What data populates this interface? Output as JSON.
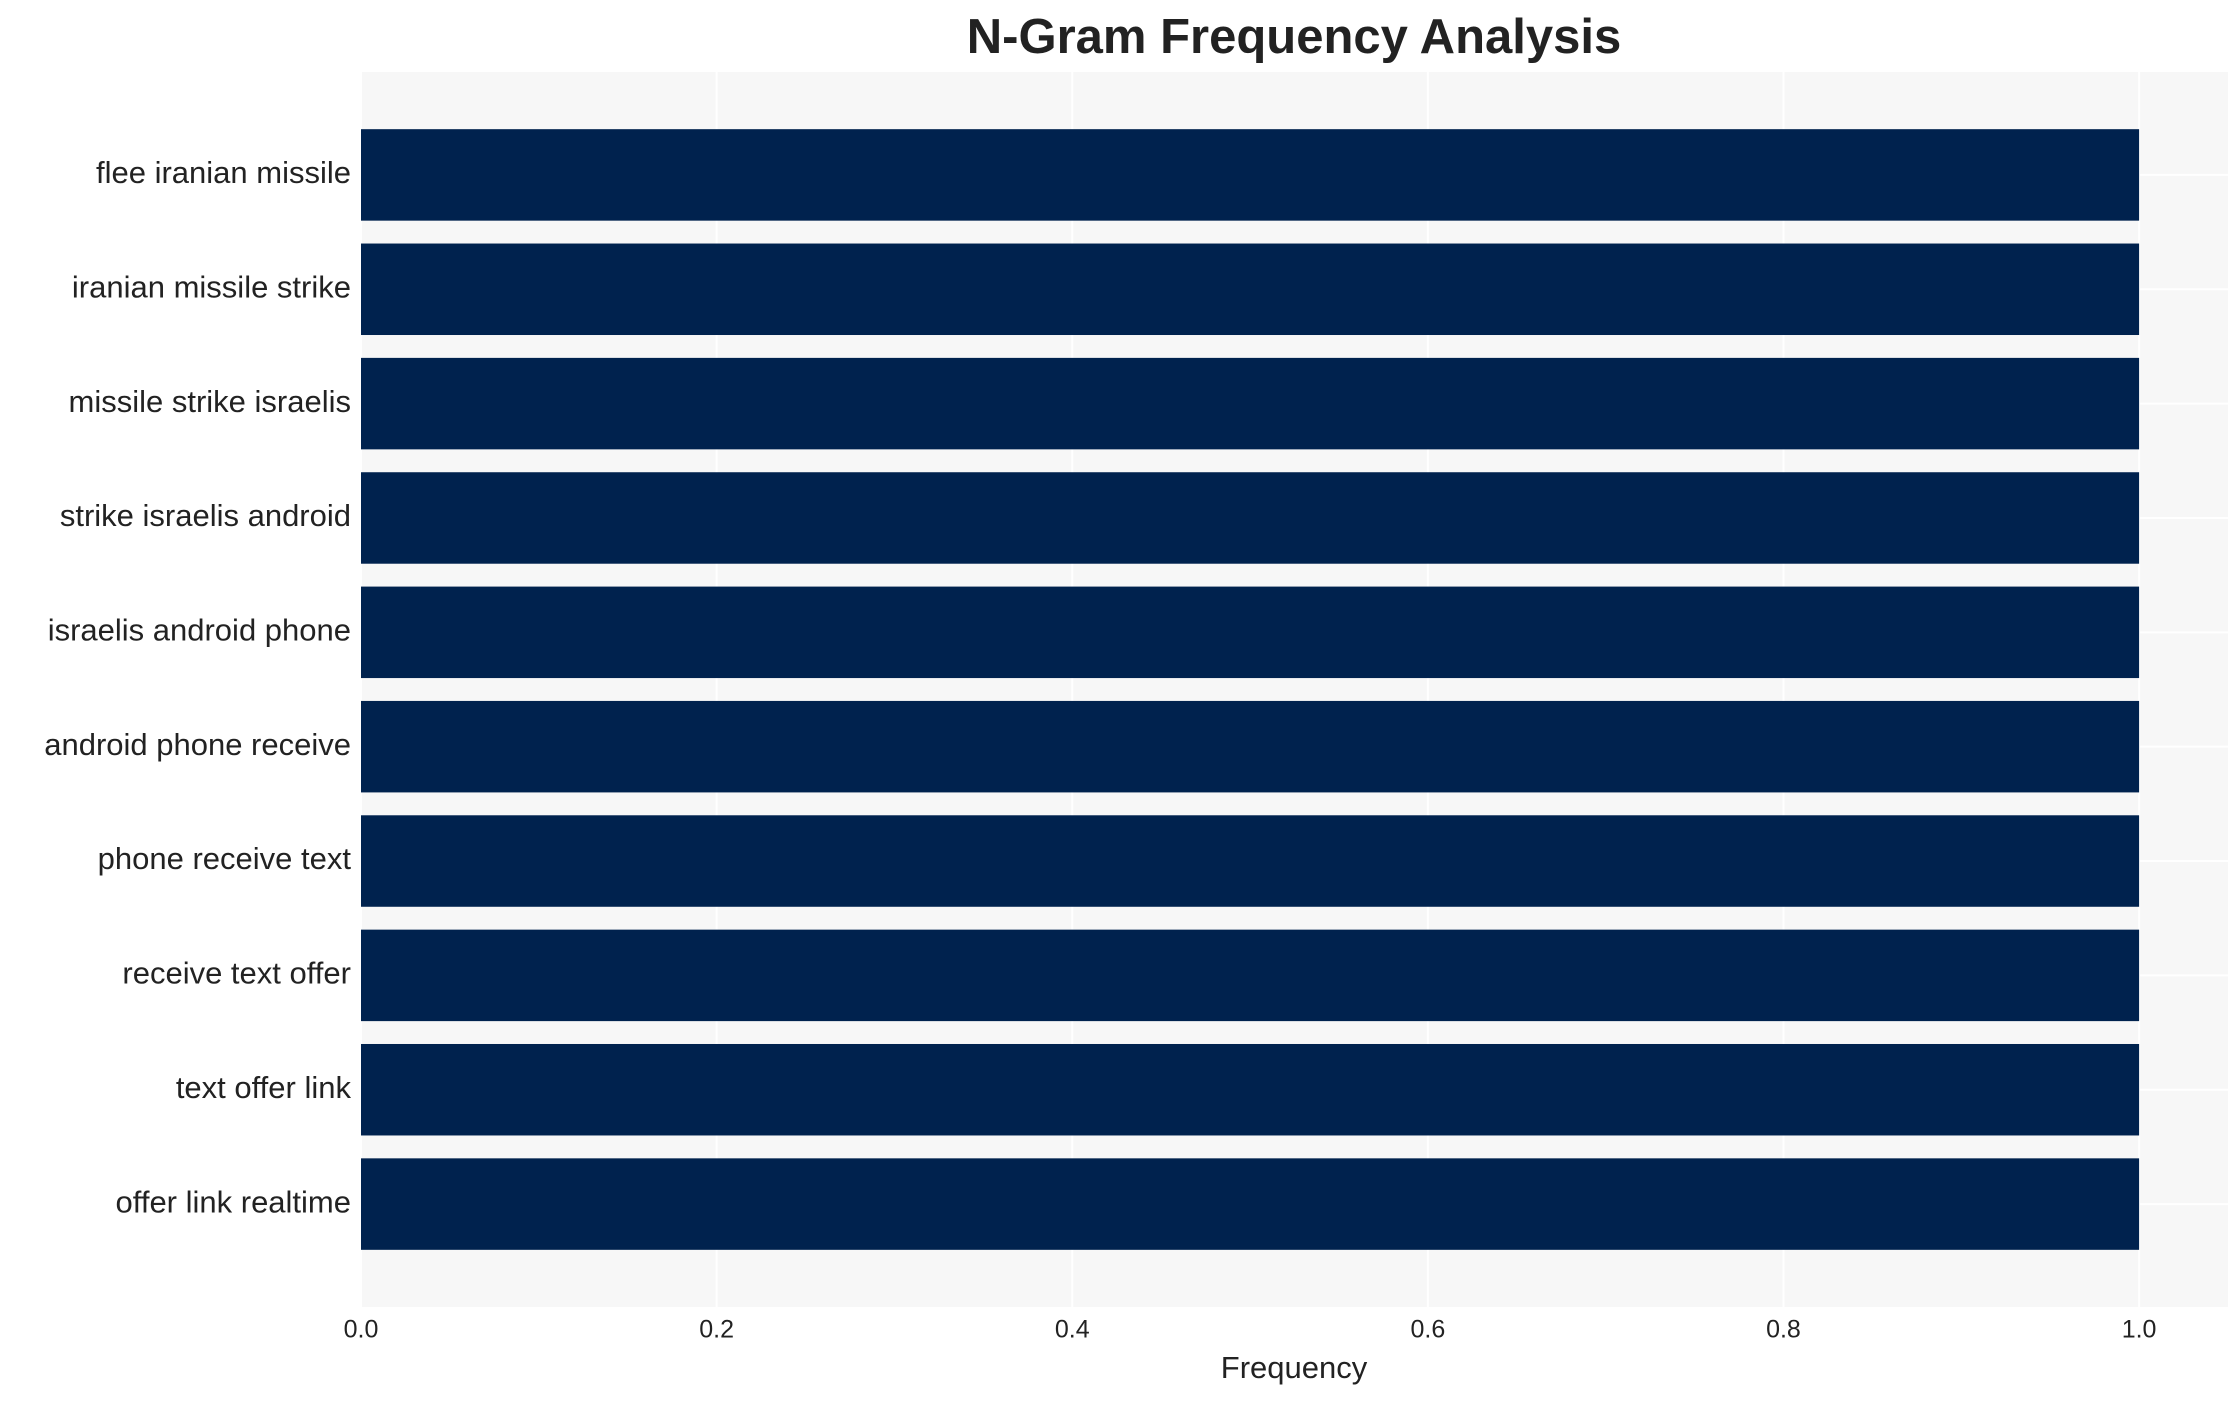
{
  "chart_data": {
    "type": "bar",
    "orientation": "horizontal",
    "title": "N-Gram Frequency Analysis",
    "x_label": "Frequency",
    "categories": [
      "flee iranian missile",
      "iranian missile strike",
      "missile strike israelis",
      "strike israelis android",
      "israelis android phone",
      "android phone receive",
      "phone receive text",
      "receive text offer",
      "text offer link",
      "offer link realtime"
    ],
    "values": [
      1,
      1,
      1,
      1,
      1,
      1,
      1,
      1,
      1,
      1
    ],
    "color": "#00224e",
    "xlim": [
      0,
      1.05
    ],
    "xticks": [
      {
        "value": 0,
        "label": "0.0"
      },
      0.2,
      0.4,
      0.6,
      0.8,
      {
        "value": 1,
        "label": "1.0"
      }
    ],
    "grid": true
  }
}
